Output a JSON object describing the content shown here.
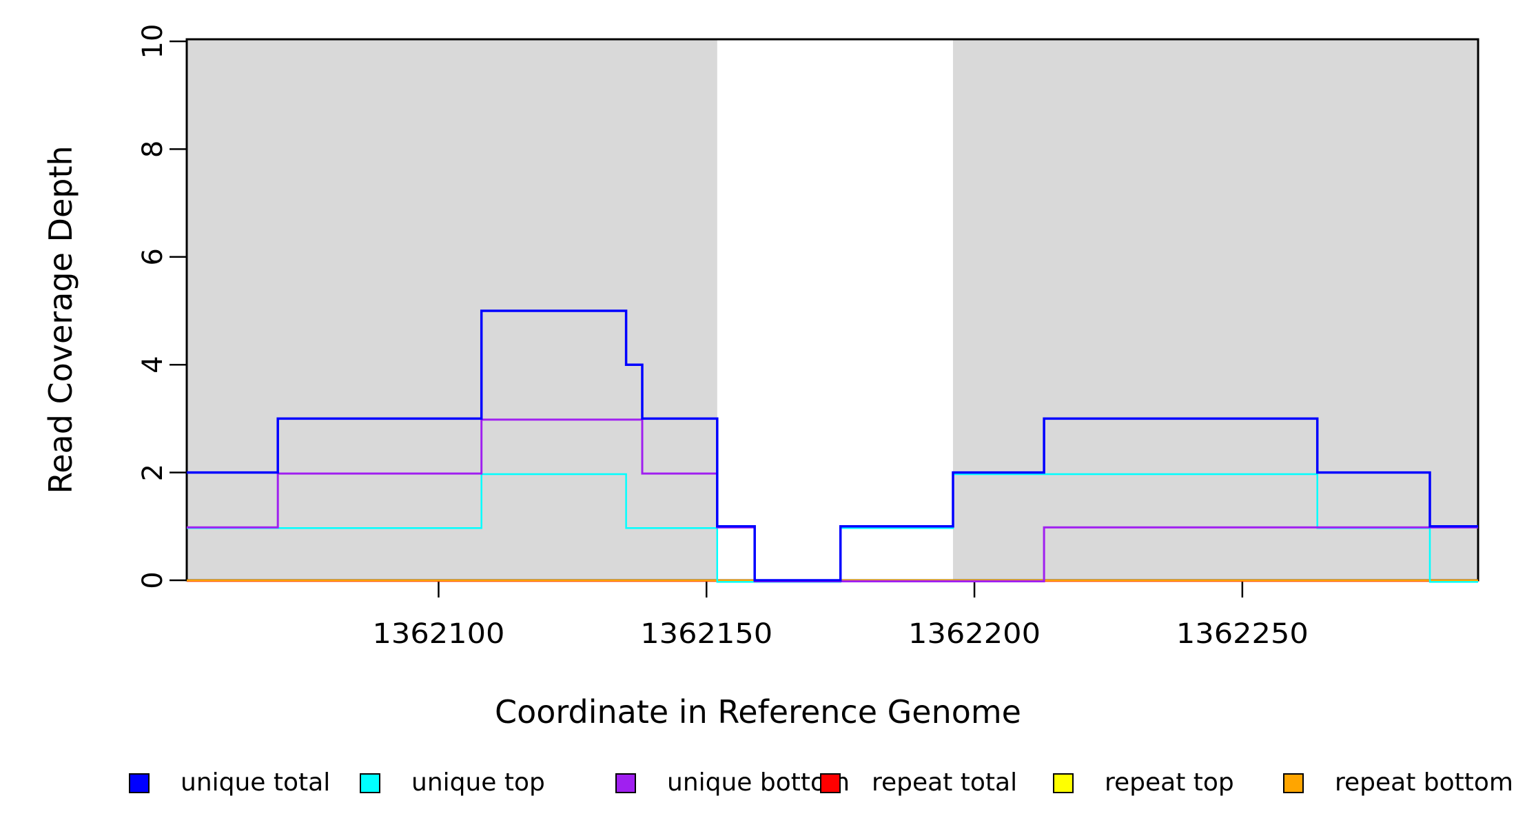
{
  "page": {
    "background_color": "#ffffff",
    "description": "Read coverage depth step plot across a reference genome region with shaded annotation intervals"
  },
  "chart_data": {
    "type": "line",
    "subtype": "step-coverage",
    "title": "",
    "xlabel": "Coordinate in Reference Genome",
    "ylabel": "Read Coverage Depth",
    "xlim": [
      1362053,
      1362294
    ],
    "ylim": [
      0,
      10
    ],
    "x_ticks": [
      1362100,
      1362150,
      1362200,
      1362250
    ],
    "y_ticks": [
      0,
      2,
      4,
      6,
      8,
      10
    ],
    "grid": false,
    "axis_color": "#000000",
    "background_shading": {
      "color": "#d9d9d9",
      "regions": [
        {
          "start": 1362053,
          "end": 1362152
        },
        {
          "start": 1362196,
          "end": 1362294
        }
      ]
    },
    "series": [
      {
        "name": "unique total",
        "color": "#0000ff",
        "steps": [
          [
            1362053,
            2
          ],
          [
            1362070,
            3
          ],
          [
            1362108,
            5
          ],
          [
            1362135,
            4
          ],
          [
            1362138,
            3
          ],
          [
            1362152,
            1
          ],
          [
            1362159,
            0
          ],
          [
            1362175,
            1
          ],
          [
            1362196,
            2
          ],
          [
            1362213,
            3
          ],
          [
            1362264,
            2
          ],
          [
            1362285,
            1
          ]
        ]
      },
      {
        "name": "unique top",
        "color": "#00ffff",
        "steps": [
          [
            1362053,
            1
          ],
          [
            1362108,
            2
          ],
          [
            1362135,
            1
          ],
          [
            1362152,
            0
          ],
          [
            1362175,
            1
          ],
          [
            1362196,
            2
          ],
          [
            1362264,
            1
          ],
          [
            1362285,
            0
          ]
        ]
      },
      {
        "name": "unique bottom",
        "color": "#a020f0",
        "steps": [
          [
            1362053,
            1
          ],
          [
            1362070,
            2
          ],
          [
            1362108,
            3
          ],
          [
            1362138,
            2
          ],
          [
            1362152,
            1
          ],
          [
            1362159,
            0
          ],
          [
            1362213,
            1
          ]
        ]
      },
      {
        "name": "repeat total",
        "color": "#ff0000",
        "steps": [
          [
            1362053,
            0
          ]
        ]
      },
      {
        "name": "repeat top",
        "color": "#ffff00",
        "steps": [
          [
            1362053,
            0
          ]
        ]
      },
      {
        "name": "repeat bottom",
        "color": "#ffa500",
        "steps": [
          [
            1362053,
            0
          ]
        ]
      }
    ],
    "legend": {
      "position": "bottom",
      "items": [
        {
          "label": "unique total",
          "color": "#0000ff"
        },
        {
          "label": "unique top",
          "color": "#00ffff"
        },
        {
          "label": "unique bottom",
          "color": "#a020f0"
        },
        {
          "label": "repeat total",
          "color": "#ff0000"
        },
        {
          "label": "repeat top",
          "color": "#ffff00"
        },
        {
          "label": "repeat bottom",
          "color": "#ffa500"
        }
      ]
    }
  }
}
